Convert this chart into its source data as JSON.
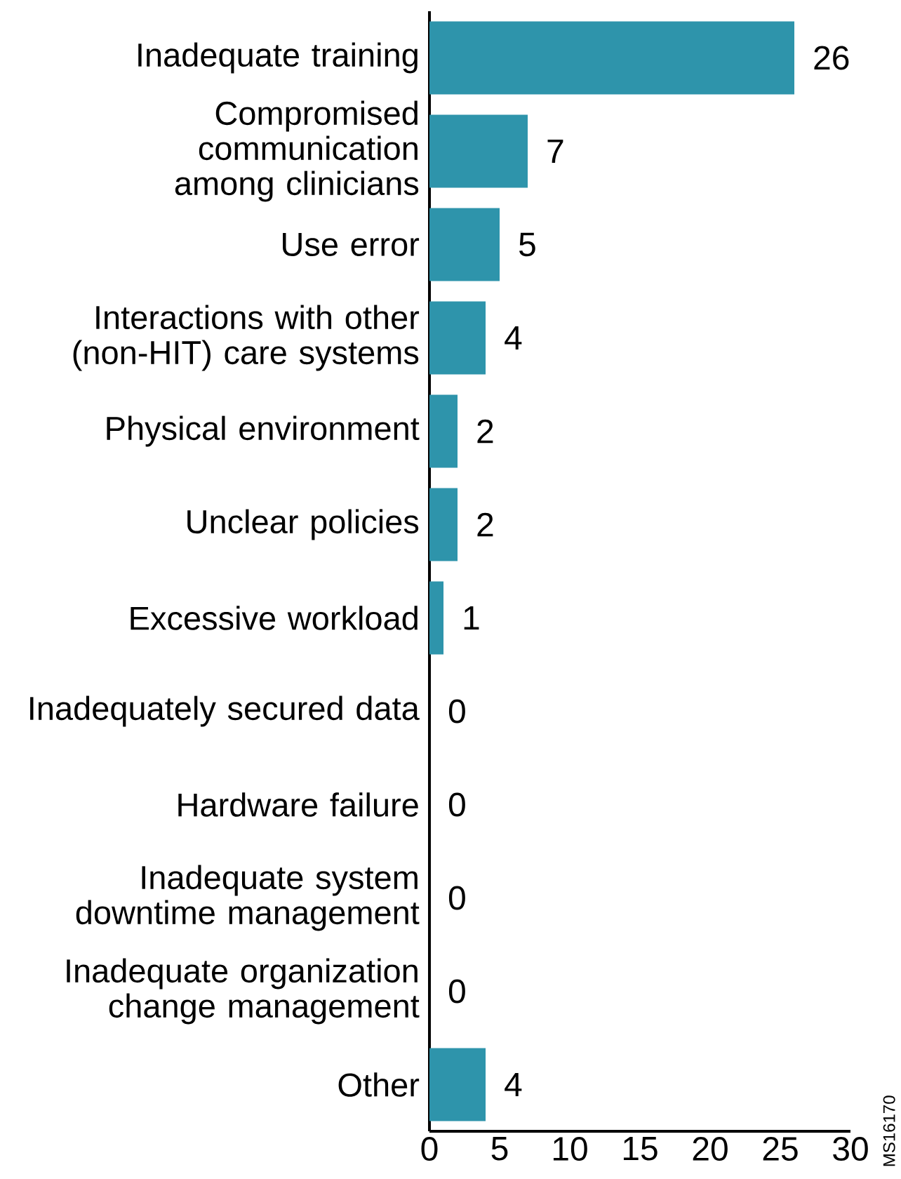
{
  "chart_data": {
    "type": "bar",
    "orientation": "horizontal",
    "categories": [
      "Inadequate training",
      "Compromised communication among clinicians",
      "Use error",
      "Interactions with other (non-HIT) care systems",
      "Physical environment",
      "Unclear policies",
      "Excessive workload",
      "Inadequately secured data",
      "Hardware failure",
      "Inadequate system downtime management",
      "Inadequate organization change management",
      "Other"
    ],
    "values": [
      26,
      7,
      5,
      4,
      2,
      2,
      1,
      0,
      0,
      0,
      0,
      4
    ],
    "color": "#2e94ab",
    "xlim": [
      0,
      30
    ],
    "xticks": [
      0,
      5,
      10,
      15,
      20,
      25,
      30
    ],
    "data_labels": true,
    "annotations": [
      "MS16170"
    ]
  }
}
